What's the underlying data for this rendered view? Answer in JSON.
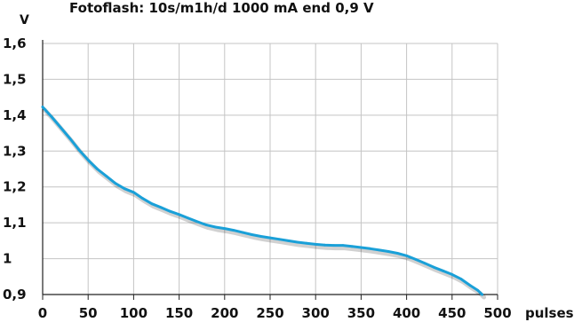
{
  "chart_data": {
    "type": "line",
    "title": "Fotoflash: 10s/m1h/d 1000 mA end 0,9 V",
    "ylabel": "V",
    "xlabel": "pulses",
    "xlim": [
      0,
      500
    ],
    "ylim": [
      0.9,
      1.6
    ],
    "x_ticks": [
      "0",
      "50",
      "100",
      "150",
      "200",
      "250",
      "300",
      "350",
      "400",
      "450",
      "500"
    ],
    "y_ticks": [
      "1,6",
      "1,5",
      "1,4",
      "1,3",
      "1,2",
      "1,1",
      "1",
      "0,9"
    ],
    "grid": true,
    "colors": {
      "line": "#1aa0d8",
      "grid": "#c4c4c4",
      "axis": "#222222"
    },
    "series": [
      {
        "x": [
          0,
          10,
          20,
          30,
          40,
          50,
          60,
          70,
          80,
          90,
          100,
          110,
          120,
          130,
          140,
          150,
          160,
          170,
          180,
          190,
          200,
          210,
          220,
          230,
          240,
          250,
          260,
          270,
          280,
          290,
          300,
          310,
          320,
          330,
          340,
          350,
          360,
          370,
          380,
          390,
          400,
          410,
          420,
          430,
          440,
          450,
          460,
          470,
          478,
          483
        ],
        "y": [
          1.423,
          1.395,
          1.365,
          1.335,
          1.303,
          1.275,
          1.25,
          1.23,
          1.21,
          1.195,
          1.185,
          1.168,
          1.153,
          1.143,
          1.132,
          1.123,
          1.113,
          1.103,
          1.094,
          1.088,
          1.084,
          1.079,
          1.073,
          1.067,
          1.062,
          1.058,
          1.054,
          1.05,
          1.046,
          1.043,
          1.04,
          1.038,
          1.037,
          1.037,
          1.034,
          1.031,
          1.028,
          1.024,
          1.02,
          1.015,
          1.008,
          0.998,
          0.987,
          0.976,
          0.966,
          0.956,
          0.943,
          0.925,
          0.912,
          0.9
        ]
      }
    ]
  }
}
